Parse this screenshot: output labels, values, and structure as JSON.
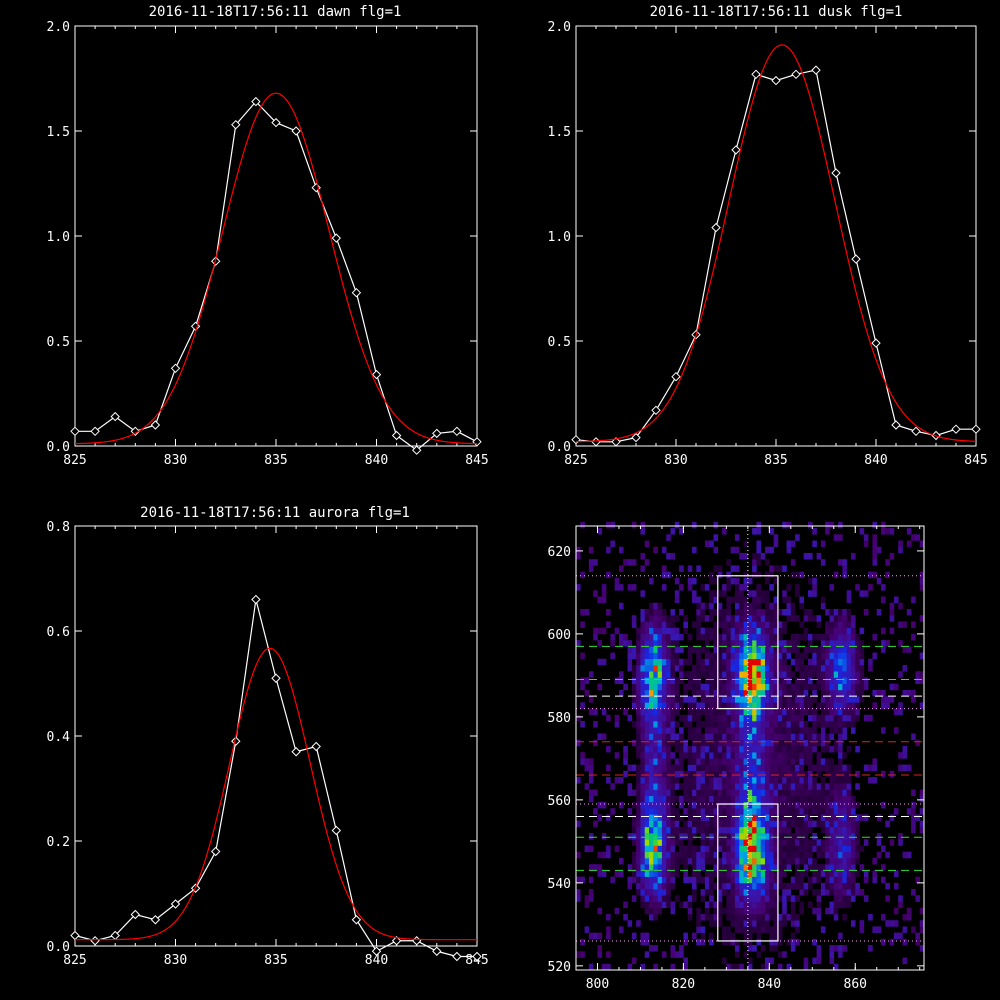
{
  "chart_data": [
    {
      "type": "line",
      "title": "2016-11-18T17:56:11 dawn flg=1",
      "xlim": [
        825,
        845
      ],
      "ylim": [
        0,
        2.0
      ],
      "xticks": [
        "825",
        "830",
        "835",
        "840",
        "845"
      ],
      "yticks": [
        "0.0",
        "0.5",
        "1.0",
        "1.5",
        "2.0"
      ],
      "series": [
        {
          "kind": "data",
          "color": "#ffffff",
          "marker": "diamond",
          "x": [
            825,
            826,
            827,
            828,
            829,
            830,
            831,
            832,
            833,
            834,
            835,
            836,
            837,
            838,
            839,
            840,
            841,
            842,
            843,
            844,
            845
          ],
          "y": [
            0.07,
            0.07,
            0.14,
            0.07,
            0.1,
            0.37,
            0.57,
            0.88,
            1.53,
            1.64,
            1.54,
            1.5,
            1.23,
            0.99,
            0.73,
            0.34,
            0.05,
            -0.02,
            0.06,
            0.07,
            0.02
          ]
        },
        {
          "kind": "fit",
          "color": "#ff0000",
          "gauss": {
            "amp": 1.67,
            "center": 835.0,
            "sigma": 2.65,
            "offset": 0.01
          }
        }
      ]
    },
    {
      "type": "line",
      "title": "2016-11-18T17:56:11 dusk flg=1",
      "xlim": [
        825,
        845
      ],
      "ylim": [
        0,
        2.0
      ],
      "xticks": [
        "825",
        "830",
        "835",
        "840",
        "845"
      ],
      "yticks": [
        "0.0",
        "0.5",
        "1.0",
        "1.5",
        "2.0"
      ],
      "series": [
        {
          "kind": "data",
          "color": "#ffffff",
          "marker": "diamond",
          "x": [
            825,
            826,
            827,
            828,
            829,
            830,
            831,
            832,
            833,
            834,
            835,
            836,
            837,
            838,
            839,
            840,
            841,
            842,
            843,
            844,
            845
          ],
          "y": [
            0.03,
            0.02,
            0.02,
            0.04,
            0.17,
            0.33,
            0.53,
            1.04,
            1.41,
            1.77,
            1.74,
            1.77,
            1.79,
            1.3,
            0.89,
            0.49,
            0.1,
            0.07,
            0.05,
            0.08,
            0.08
          ]
        },
        {
          "kind": "fit",
          "color": "#ff0000",
          "gauss": {
            "amp": 1.89,
            "center": 835.3,
            "sigma": 2.65,
            "offset": 0.02
          }
        }
      ]
    },
    {
      "type": "line",
      "title": "2016-11-18T17:56:11 aurora flg=1",
      "xlim": [
        825,
        845
      ],
      "ylim": [
        0,
        0.8
      ],
      "xticks": [
        "825",
        "830",
        "835",
        "840",
        "845"
      ],
      "yticks": [
        "0.0",
        "0.2",
        "0.4",
        "0.6",
        "0.8"
      ],
      "series": [
        {
          "kind": "data",
          "color": "#ffffff",
          "marker": "diamond",
          "x": [
            825,
            826,
            827,
            828,
            829,
            830,
            831,
            832,
            833,
            834,
            835,
            836,
            837,
            838,
            839,
            840,
            841,
            842,
            843,
            844,
            845
          ],
          "y": [
            0.02,
            0.01,
            0.02,
            0.06,
            0.05,
            0.08,
            0.11,
            0.18,
            0.39,
            0.66,
            0.51,
            0.37,
            0.38,
            0.22,
            0.05,
            -0.01,
            0.01,
            0.01,
            -0.01,
            -0.02,
            -0.02
          ]
        },
        {
          "kind": "fit",
          "color": "#ff0000",
          "gauss": {
            "amp": 0.555,
            "center": 834.7,
            "sigma": 2.0,
            "offset": 0.012
          }
        }
      ]
    },
    {
      "type": "heatmap",
      "title": "",
      "xlim": [
        795,
        876
      ],
      "ylim": [
        519,
        626
      ],
      "xticks": [
        "800",
        "820",
        "840",
        "860"
      ],
      "yticks": [
        "520",
        "540",
        "560",
        "580",
        "600",
        "620"
      ],
      "blobs": [
        {
          "x": 813,
          "y": 590,
          "sx": 2.0,
          "sy": 7,
          "amp": 0.55
        },
        {
          "x": 813,
          "y": 549,
          "sx": 2.0,
          "sy": 7,
          "amp": 0.55
        },
        {
          "x": 836,
          "y": 590,
          "sx": 2.2,
          "sy": 6,
          "amp": 0.95
        },
        {
          "x": 836,
          "y": 549,
          "sx": 2.2,
          "sy": 7,
          "amp": 0.85
        },
        {
          "x": 836,
          "y": 570,
          "sx": 2.0,
          "sy": 12,
          "amp": 0.22
        },
        {
          "x": 813,
          "y": 570,
          "sx": 1.8,
          "sy": 14,
          "amp": 0.18
        },
        {
          "x": 857,
          "y": 592,
          "sx": 2.0,
          "sy": 6,
          "amp": 0.42
        },
        {
          "x": 857,
          "y": 549,
          "sx": 2.0,
          "sy": 8,
          "amp": 0.2
        },
        {
          "x": 836,
          "y": 570,
          "sx": 20,
          "sy": 45,
          "amp": 0.1
        }
      ],
      "boxes": [
        {
          "x0": 828,
          "x1": 842,
          "y0": 582,
          "y1": 614,
          "color": "#ffffff"
        },
        {
          "x0": 828,
          "x1": 842,
          "y0": 526,
          "y1": 559,
          "color": "#ffffff"
        }
      ],
      "vlines": [
        {
          "x": 835,
          "color": "#ffffff",
          "style": "dotted"
        }
      ],
      "hlines": [
        {
          "y": 614,
          "color": "#ff9fff",
          "style": "dotted"
        },
        {
          "y": 582,
          "color": "#ff9fff",
          "style": "dotted"
        },
        {
          "y": 559,
          "color": "#ff9fff",
          "style": "dotted"
        },
        {
          "y": 526,
          "color": "#ff9fff",
          "style": "dotted"
        },
        {
          "y": 597,
          "color": "#33dd33",
          "style": "dashed"
        },
        {
          "y": 589,
          "color": "#33dd33",
          "style": "dashed"
        },
        {
          "y": 585,
          "color": "#ffffff",
          "style": "dashed"
        },
        {
          "y": 574,
          "color": "#dd2222",
          "style": "dashed"
        },
        {
          "y": 566,
          "color": "#dd2222",
          "style": "dashed"
        },
        {
          "y": 556,
          "color": "#ffffff",
          "style": "dashed"
        },
        {
          "y": 551,
          "color": "#33dd33",
          "style": "dashed"
        },
        {
          "y": 543,
          "color": "#33dd33",
          "style": "dashed"
        }
      ]
    }
  ]
}
